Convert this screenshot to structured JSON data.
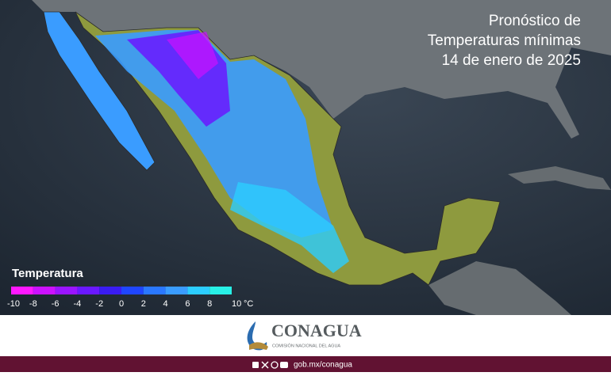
{
  "header": {
    "title_lines": [
      "Pronóstico de",
      "Temperaturas mínimas",
      "14 de enero de 2025"
    ]
  },
  "legend": {
    "title": "Temperatura",
    "ticks": [
      -10,
      -8,
      -6,
      -4,
      -2,
      0,
      2,
      4,
      6,
      8,
      10
    ],
    "unit": "°C",
    "colors": [
      "#ff18ff",
      "#cc11ff",
      "#9a14ff",
      "#6a18ff",
      "#3a1cf2",
      "#1f46ff",
      "#2a78ff",
      "#3a9cff",
      "#2ccdff",
      "#28f0e6"
    ]
  },
  "logo": {
    "name": "CONAGUA",
    "subtitle": "COMISIÓN NACIONAL DEL AGUA"
  },
  "footer": {
    "url": "gob.mx/conagua"
  }
}
